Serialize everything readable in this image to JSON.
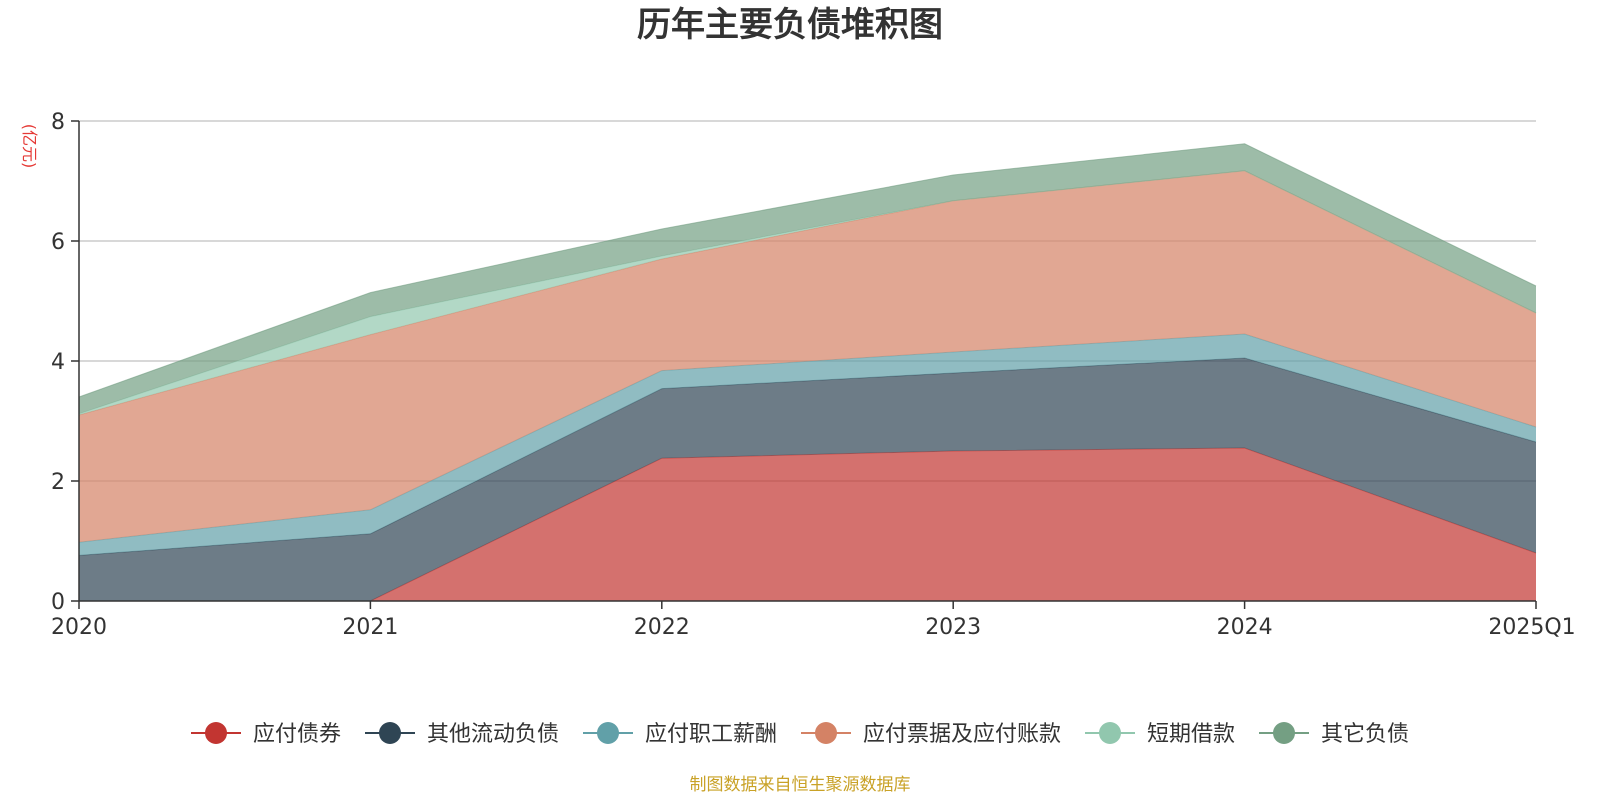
{
  "chart_data": {
    "type": "area",
    "stacked": true,
    "title": "历年主要负债堆积图",
    "unit_label": "(亿元)",
    "source_note": "制图数据来自恒生聚源数据库",
    "categories": [
      "2020",
      "2021",
      "2022",
      "2023",
      "2024",
      "2025Q1"
    ],
    "ylim": [
      0,
      8
    ],
    "yticks": [
      0,
      2,
      4,
      6,
      8
    ],
    "grid": true,
    "legend_position": "bottom",
    "series": [
      {
        "name": "应付债券",
        "color": "#c23531",
        "values": [
          0,
          0,
          2.38,
          2.5,
          2.55,
          0.8
        ]
      },
      {
        "name": "其他流动负债",
        "color": "#2f4554",
        "values": [
          0.76,
          1.12,
          1.16,
          1.3,
          1.5,
          1.85
        ]
      },
      {
        "name": "应付职工薪酬",
        "color": "#61a0a8",
        "values": [
          0.22,
          0.4,
          0.3,
          0.35,
          0.4,
          0.25
        ]
      },
      {
        "name": "应付票据及应付账款",
        "color": "#d48265",
        "values": [
          2.12,
          2.92,
          1.86,
          2.52,
          2.72,
          1.9
        ]
      },
      {
        "name": "短期借款",
        "color": "#91c7ae",
        "values": [
          0.02,
          0.3,
          0.05,
          0,
          0,
          0
        ]
      },
      {
        "name": "其它负债",
        "color": "#749f83",
        "values": [
          0.28,
          0.4,
          0.45,
          0.43,
          0.45,
          0.45
        ]
      }
    ]
  }
}
